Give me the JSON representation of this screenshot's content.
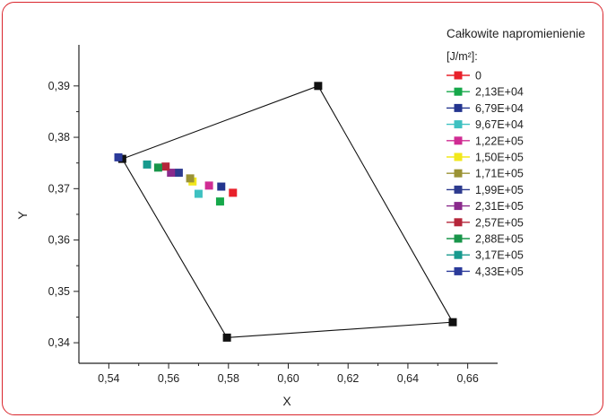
{
  "chart_data": {
    "type": "scatter",
    "xlabel": "X",
    "ylabel": "Y",
    "xlim": [
      0.53,
      0.67
    ],
    "ylim": [
      0.336,
      0.398
    ],
    "xticks": [
      "0,54",
      "0,56",
      "0,58",
      "0,60",
      "0,62",
      "0,64",
      "0,66"
    ],
    "xtick_values": [
      0.54,
      0.56,
      0.58,
      0.6,
      0.62,
      0.64,
      0.66
    ],
    "yticks": [
      "0,34",
      "0,35",
      "0,36",
      "0,37",
      "0,38",
      "0,39"
    ],
    "ytick_values": [
      0.34,
      0.35,
      0.36,
      0.37,
      0.38,
      0.39
    ],
    "grid": false,
    "legend_title": "Całkowite napromienienie",
    "legend_unit": "[J/m²]:",
    "legend_placement": "top-right",
    "polygon": {
      "color": "#111111",
      "points": [
        {
          "x": 0.61,
          "y": 0.39
        },
        {
          "x": 0.655,
          "y": 0.344
        },
        {
          "x": 0.5795,
          "y": 0.341
        },
        {
          "x": 0.5445,
          "y": 0.3758
        }
      ]
    },
    "series": [
      {
        "name": "0",
        "color": "#e8202a",
        "x": 0.5815,
        "y": 0.3692
      },
      {
        "name": "2,13E+04",
        "color": "#16a84a",
        "x": 0.5772,
        "y": 0.3675
      },
      {
        "name": "6,79E+04",
        "color": "#24358f",
        "x": 0.5776,
        "y": 0.3704
      },
      {
        "name": "9,67E+04",
        "color": "#3ec1c1",
        "x": 0.57,
        "y": 0.369
      },
      {
        "name": "1,22E+05",
        "color": "#d02c93",
        "x": 0.5735,
        "y": 0.3706
      },
      {
        "name": "1,50E+05",
        "color": "#f2e81b",
        "x": 0.568,
        "y": 0.3714
      },
      {
        "name": "1,71E+05",
        "color": "#9b9335",
        "x": 0.5672,
        "y": 0.372
      },
      {
        "name": "1,99E+05",
        "color": "#2d3b8f",
        "x": 0.5634,
        "y": 0.3731
      },
      {
        "name": "2,31E+05",
        "color": "#8a2a8c",
        "x": 0.5608,
        "y": 0.3731
      },
      {
        "name": "2,57E+05",
        "color": "#b5263a",
        "x": 0.559,
        "y": 0.3743
      },
      {
        "name": "2,88E+05",
        "color": "#18954a",
        "x": 0.5565,
        "y": 0.3741
      },
      {
        "name": "3,17E+05",
        "color": "#179a8e",
        "x": 0.5528,
        "y": 0.3747
      },
      {
        "name": "4,33E+05",
        "color": "#2b3a9a",
        "x": 0.5432,
        "y": 0.3761
      }
    ]
  }
}
